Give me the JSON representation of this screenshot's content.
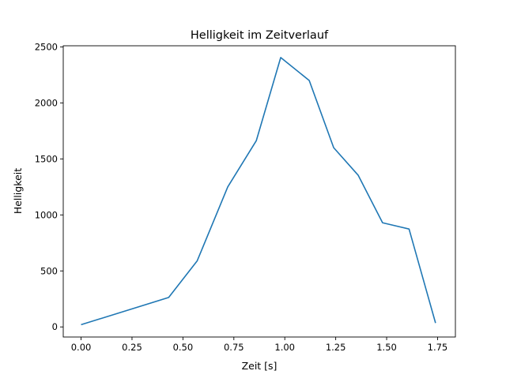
{
  "chart_data": {
    "type": "line",
    "title": "Helligkeit im Zeitverlauf",
    "xlabel": "Zeit [s]",
    "ylabel": "Helligkeit",
    "xlim": [
      -0.0875,
      1.8375
    ],
    "ylim": [
      -90,
      2510
    ],
    "xticks": [
      0.0,
      0.25,
      0.5,
      0.75,
      1.0,
      1.25,
      1.5,
      1.75
    ],
    "xtick_labels": [
      "0.00",
      "0.25",
      "0.50",
      "0.75",
      "1.00",
      "1.25",
      "1.50",
      "1.75"
    ],
    "yticks": [
      0,
      500,
      1000,
      1500,
      2000,
      2500
    ],
    "ytick_labels": [
      "0",
      "500",
      "1000",
      "1500",
      "2000",
      "2500"
    ],
    "grid": false,
    "series": [
      {
        "name": "Helligkeit",
        "color": "#1f77b4",
        "x": [
          0.0,
          0.43,
          0.57,
          0.72,
          0.86,
          0.98,
          1.12,
          1.24,
          1.36,
          1.48,
          1.61,
          1.74
        ],
        "y": [
          20,
          263,
          590,
          1250,
          1662,
          2405,
          2200,
          1600,
          1355,
          930,
          874,
          35
        ]
      }
    ]
  }
}
